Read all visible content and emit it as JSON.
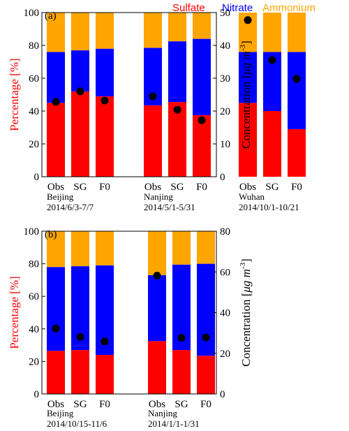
{
  "colors": {
    "sulfate": "#ff0000",
    "nitrate": "#0000ff",
    "ammonium": "#ffa500",
    "marker": "#000000"
  },
  "legend": [
    "Sulfate",
    "Nitrate",
    "Ammonium"
  ],
  "chart_data": [
    {
      "type": "bar",
      "panel": "(a)",
      "stacked": true,
      "ylabel": "Percentage [%]",
      "ylabel_right_text": "Concentration [",
      "ylabel_right_mu": "μ",
      "ylabel_right_unit": "g m",
      "ylabel_right_exp": "-3",
      "ylabel_right_close": "]",
      "ylim": [
        0,
        100
      ],
      "yticks": [
        0,
        20,
        40,
        60,
        80,
        100
      ],
      "y2lim": [
        0,
        50
      ],
      "y2ticks": [
        0,
        10,
        20,
        30,
        40,
        50
      ],
      "groups": [
        {
          "site": "Beijing",
          "period": "2014/6/3-7/7",
          "categories": [
            "Obs",
            "SG",
            "F0"
          ],
          "sulfate": [
            45,
            52,
            49
          ],
          "nitrate": [
            31,
            25,
            29
          ],
          "ammonium": [
            24,
            23,
            22
          ],
          "concentration": [
            22.8,
            26,
            23.2
          ]
        },
        {
          "site": "Nanjing",
          "period": "2014/5/1-5/31",
          "categories": [
            "Obs",
            "SG",
            "F0"
          ],
          "sulfate": [
            43.5,
            45.5,
            37.5
          ],
          "nitrate": [
            35,
            37,
            46.5
          ],
          "ammonium": [
            21.5,
            17.5,
            16
          ],
          "concentration": [
            24.5,
            20.4,
            17.2
          ]
        },
        {
          "site": "Wuhan",
          "period": "2014/10/1-10/21",
          "categories": [
            "Obs",
            "SG",
            "F0"
          ],
          "sulfate": [
            45,
            40,
            29
          ],
          "nitrate": [
            31,
            36,
            47
          ],
          "ammonium": [
            24,
            24,
            24
          ],
          "concentration": [
            47.7,
            35.5,
            29.8
          ]
        }
      ]
    },
    {
      "type": "bar",
      "panel": "(b)",
      "stacked": true,
      "ylabel": "Percentage [%]",
      "ylabel_right_text": "Concentration [",
      "ylabel_right_mu": "μ",
      "ylabel_right_unit": "g m",
      "ylabel_right_exp": "-3",
      "ylabel_right_close": "]",
      "ylim": [
        0,
        100
      ],
      "yticks": [
        0,
        20,
        40,
        60,
        80,
        100
      ],
      "y2lim": [
        0,
        80
      ],
      "y2ticks": [
        0,
        20,
        40,
        60,
        80
      ],
      "groups": [
        {
          "site": "Beijing",
          "period": "2014/10/15-11/6",
          "categories": [
            "Obs",
            "SG",
            "F0"
          ],
          "sulfate": [
            26.5,
            27,
            24
          ],
          "nitrate": [
            51.5,
            51.5,
            55
          ],
          "ammonium": [
            22,
            21.5,
            21
          ],
          "concentration": [
            32.2,
            28,
            25.8
          ]
        },
        {
          "site": "Nanjing",
          "period": "2014/1/1-1/31",
          "categories": [
            "Obs",
            "SG",
            "F0"
          ],
          "sulfate": [
            32.5,
            27,
            23.5
          ],
          "nitrate": [
            40.5,
            52.5,
            56.5
          ],
          "ammonium": [
            27,
            20.5,
            20
          ],
          "concentration": [
            58.2,
            27.6,
            27.8
          ]
        }
      ]
    }
  ]
}
